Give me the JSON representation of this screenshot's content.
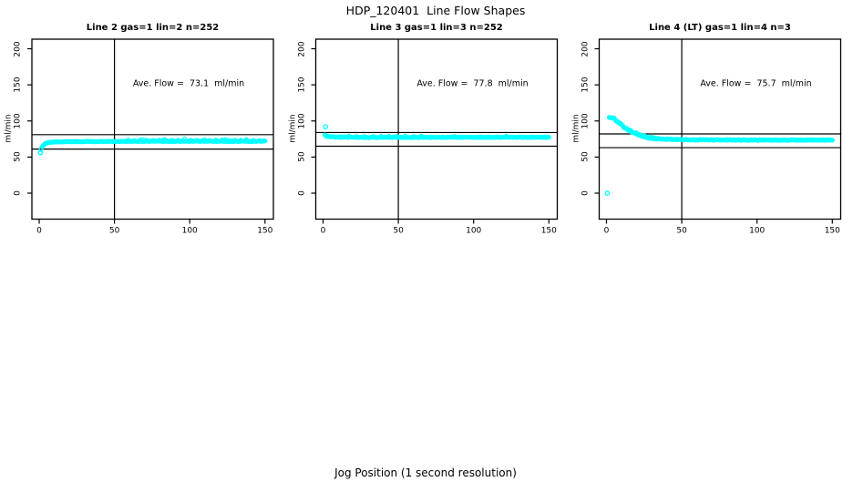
{
  "chart_data": {
    "type": "scatter",
    "title": "HDP_120401  Line Flow Shapes",
    "xlabel": "Jog Position (1 second resolution)",
    "marker": "open-circle",
    "marker_color": "#00ffff",
    "axis_color": "#000000",
    "x_ticks": [
      0,
      50,
      100,
      150
    ],
    "y_ticks": [
      0,
      50,
      100,
      150,
      200
    ],
    "x_range_shown": [
      -5,
      156
    ],
    "y_range_shown": [
      -36,
      212
    ],
    "panels": [
      {
        "title": "Line 2 gas=1 lin=2 n=252",
        "ylabel": "ml/min",
        "annotation": "Ave. Flow =  73.1  ml/min",
        "ave_flow_ml_min": 73.1,
        "n": 252,
        "hlines": [
          81,
          61
        ],
        "vline_x": 50,
        "outlier_points": [
          [
            0.8,
            56
          ]
        ],
        "profile_keypoints": [
          [
            0.8,
            56
          ],
          [
            1.5,
            62
          ],
          [
            2.5,
            66
          ],
          [
            4,
            68.8
          ],
          [
            6,
            70.2
          ],
          [
            10,
            71
          ],
          [
            20,
            71.4
          ],
          [
            60,
            71.8
          ],
          [
            150,
            71.9
          ]
        ],
        "x_start": 0.8,
        "x_end": 150,
        "points_drawn": 252,
        "jitter_bands": [
          [
            0,
            150,
            0.45
          ]
        ],
        "spikes": [
          [
            7,
            55,
            150,
            1.5
          ],
          [
            23,
            60,
            150,
            2.2
          ]
        ]
      },
      {
        "title": "Line 3 gas=1 lin=3 n=252",
        "ylabel": "ml/min",
        "annotation": "Ave. Flow =  77.8  ml/min",
        "ave_flow_ml_min": 77.8,
        "n": 252,
        "hlines": [
          84,
          65
        ],
        "vline_x": 50,
        "outlier_points": [
          [
            1.6,
            92
          ]
        ],
        "profile_keypoints": [
          [
            1.2,
            80.5
          ],
          [
            2.5,
            79
          ],
          [
            5,
            78
          ],
          [
            10,
            77.5
          ],
          [
            30,
            77.3
          ],
          [
            80,
            77.4
          ],
          [
            150,
            77.5
          ]
        ],
        "x_start": 1.2,
        "x_end": 150,
        "points_drawn": 252,
        "jitter_bands": [
          [
            0,
            150,
            0.45
          ]
        ],
        "spikes": [
          [
            9,
            8,
            70,
            1.4
          ],
          [
            29,
            70,
            150,
            1.0
          ]
        ]
      },
      {
        "title": "Line 4 (LT) gas=1 lin=4 n=3",
        "ylabel": "ml/min",
        "annotation": "Ave. Flow =  75.7  ml/min",
        "ave_flow_ml_min": 75.7,
        "n": 3,
        "hlines": [
          82,
          63
        ],
        "vline_x": 50,
        "outlier_points": [
          [
            0.5,
            0
          ]
        ],
        "profile_keypoints": [
          [
            1.8,
            106
          ],
          [
            3,
            105
          ],
          [
            5,
            103
          ],
          [
            7,
            99.5
          ],
          [
            9,
            96
          ],
          [
            12,
            91
          ],
          [
            15,
            87
          ],
          [
            18,
            84
          ],
          [
            22,
            80.5
          ],
          [
            26,
            78
          ],
          [
            30,
            76.5
          ],
          [
            35,
            75.3
          ],
          [
            45,
            74.3
          ],
          [
            60,
            73.8
          ],
          [
            100,
            73.5
          ],
          [
            150,
            73.5
          ]
        ],
        "x_start": 1.8,
        "x_end": 150,
        "points_drawn": 250,
        "jitter_bands": [
          [
            0,
            35,
            1.25
          ],
          [
            35,
            150,
            0.5
          ]
        ],
        "spikes": []
      }
    ]
  }
}
